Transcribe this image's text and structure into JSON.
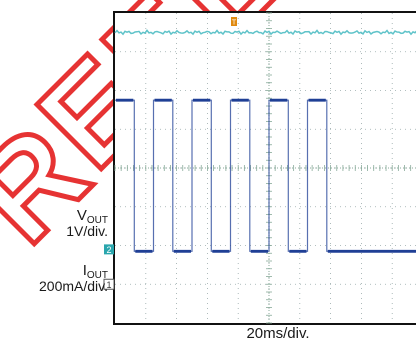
{
  "chart_data": {
    "type": "line",
    "time_scale": "20ms/div.",
    "trigger_marker": "T",
    "watermark": "REFE",
    "colors": {
      "vout": "#5fc3c9",
      "iout": "#1f3f95",
      "marker_vout": "#2aa6ad",
      "trigger": "#e08a10",
      "watermark": "#e41e1e"
    },
    "series": [
      {
        "id": "vout",
        "name_main": "V",
        "name_sub": "OUT",
        "scale": "1V/div.",
        "channel": "2",
        "level_div": 3.5,
        "noise_div": 0.05
      },
      {
        "id": "iout",
        "name_main": "I",
        "name_sub": "OUT",
        "scale": "200mA/div.",
        "channel": "1",
        "high_div": 1.75,
        "low_div": -2.15,
        "edges_ms": [
          0.0,
          12.5,
          25.0,
          37.5,
          50.0,
          62.5,
          75.0,
          87.5,
          100.0,
          112.5,
          125.0,
          137.5
        ]
      }
    ],
    "grid": {
      "divisions_x": 10,
      "divisions_y": 8,
      "visible": true
    }
  }
}
